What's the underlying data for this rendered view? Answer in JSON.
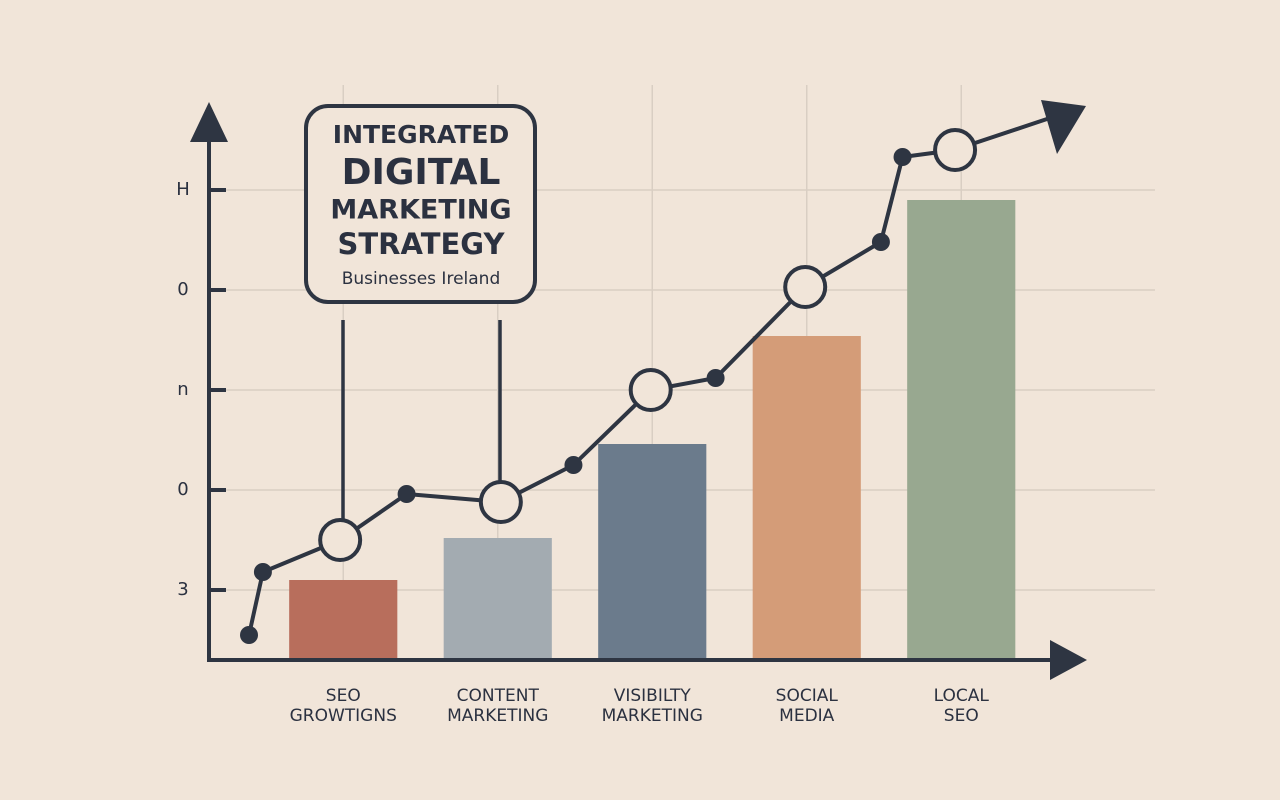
{
  "chart_data": {
    "type": "bar",
    "title_lines": [
      "INTEGRATED",
      "DIGITAL",
      "MARKETING",
      "STRATEGY"
    ],
    "subtitle": "Businesses Ireland",
    "categories": [
      "SEO\nGROWTIGNS",
      "CONTENT\nMARKETING",
      "VISIBILTY\nMARKETING",
      "SOCIAL\nMEDIA",
      "LOCAL\nSEO"
    ],
    "values": [
      1.1,
      1.52,
      2.46,
      3.54,
      4.9
    ],
    "colors": [
      "#b86e5c",
      "#a3abb1",
      "#6b7b8c",
      "#d49c78",
      "#98a890"
    ],
    "ylim": [
      0.3,
      5.85
    ],
    "yticks": [
      {
        "value": 1,
        "label": "3"
      },
      {
        "value": 2,
        "label": "0"
      },
      {
        "value": 3,
        "label": "n"
      },
      {
        "value": 4,
        "label": "0"
      },
      {
        "value": 5,
        "label": "H"
      }
    ],
    "grid": true,
    "trend": {
      "color": "#2e3542",
      "x": [
        -0.61,
        -0.52,
        -0.02,
        0.41,
        1.02,
        1.49,
        1.99,
        2.41,
        2.99,
        3.48,
        3.62,
        3.96
      ],
      "values": [
        0.55,
        1.18,
        1.5,
        1.96,
        1.88,
        2.25,
        3.0,
        3.12,
        4.03,
        4.48,
        5.33,
        5.4
      ],
      "open_markers": [
        2,
        4,
        6,
        8,
        11
      ]
    }
  }
}
